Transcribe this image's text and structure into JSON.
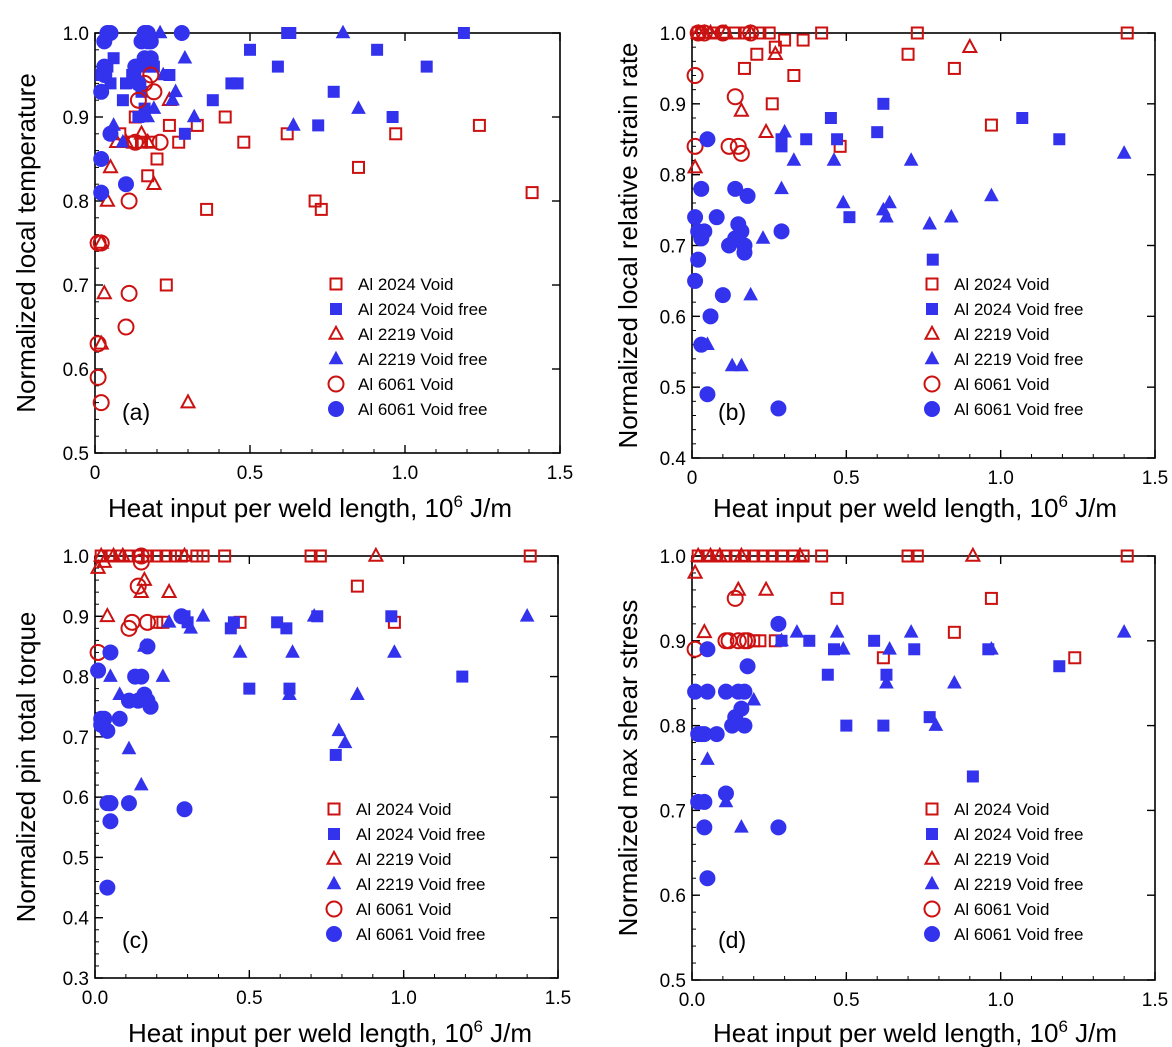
{
  "colors": {
    "void": "#cc1111",
    "void_free": "#3333ee"
  },
  "legend_entries": [
    {
      "label": "Al 2024 Void",
      "marker": "square",
      "filled": false
    },
    {
      "label": "Al 2024 Void free",
      "marker": "square",
      "filled": true
    },
    {
      "label": "Al 2219 Void",
      "marker": "triangle",
      "filled": false
    },
    {
      "label": "Al 2219 Void free",
      "marker": "triangle",
      "filled": true
    },
    {
      "label": "Al 6061 Void",
      "marker": "circle",
      "filled": false
    },
    {
      "label": "Al 6061 Void free",
      "marker": "circle",
      "filled": true
    }
  ],
  "chart_data": [
    {
      "type": "scatter",
      "panel_label": "(a)",
      "xlabel": "Heat input per weld length, 10",
      "xlabel_sup": "6",
      "xlabel_unit": " J/m",
      "ylabel": "Normalized local temperature",
      "xlim": [
        0,
        1.5
      ],
      "ylim": [
        0.5,
        1.0
      ],
      "xticks": [
        "0",
        "0.5",
        "1.0",
        "1.5"
      ],
      "xtick_values": [
        0,
        0.5,
        1.0,
        1.5
      ],
      "yticks": [
        "0.5",
        "0.6",
        "0.7",
        "0.8",
        "0.9",
        "1.0"
      ],
      "ytick_values": [
        0.5,
        0.6,
        0.7,
        0.8,
        0.9,
        1.0
      ],
      "series": [
        {
          "x": [
            0.12,
            0.15,
            0.18,
            0.2,
            0.24,
            0.27,
            0.33,
            0.36,
            0.42,
            0.48,
            0.62,
            0.71,
            0.73,
            0.85,
            0.97,
            1.24,
            1.41,
            0.23,
            0.17,
            0.13,
            0.08
          ],
          "y": [
            0.87,
            0.87,
            0.87,
            0.85,
            0.89,
            0.87,
            0.89,
            0.79,
            0.9,
            0.87,
            0.88,
            0.8,
            0.79,
            0.84,
            0.88,
            0.89,
            0.81,
            0.7,
            0.83,
            0.9,
            0.88
          ]
        },
        {
          "x": [
            0.05,
            0.12,
            0.14,
            0.15,
            0.16,
            0.19,
            0.24,
            0.29,
            0.38,
            0.44,
            0.46,
            0.5,
            0.59,
            0.62,
            0.63,
            0.72,
            0.77,
            0.91,
            0.96,
            1.07,
            1.19,
            0.02,
            0.03,
            0.04,
            0.05,
            0.06,
            0.09,
            0.1,
            0.13,
            0.16,
            0.18
          ],
          "y": [
            0.88,
            0.95,
            0.9,
            0.93,
            0.96,
            0.96,
            0.95,
            0.88,
            0.92,
            0.94,
            0.94,
            0.98,
            0.96,
            1.0,
            1.0,
            0.89,
            0.93,
            0.98,
            0.9,
            0.96,
            1.0,
            0.95,
            0.95,
            0.96,
            0.94,
            0.97,
            0.92,
            0.94,
            0.95,
            0.91,
            0.96
          ]
        },
        {
          "x": [
            0.02,
            0.03,
            0.04,
            0.05,
            0.07,
            0.1,
            0.15,
            0.17,
            0.19,
            0.24,
            0.3,
            0.02
          ],
          "y": [
            0.75,
            0.69,
            0.8,
            0.84,
            0.87,
            0.87,
            0.88,
            0.87,
            0.82,
            0.92,
            0.56,
            0.63
          ]
        },
        {
          "x": [
            0.06,
            0.09,
            0.13,
            0.15,
            0.19,
            0.21,
            0.25,
            0.29,
            0.32,
            0.64,
            0.8,
            0.85,
            0.22,
            0.17,
            0.26
          ],
          "y": [
            0.89,
            0.87,
            0.96,
            0.9,
            0.91,
            1.0,
            0.92,
            0.97,
            0.9,
            0.89,
            1.0,
            0.91,
            0.95,
            0.9,
            0.93
          ]
        },
        {
          "x": [
            0.01,
            0.01,
            0.01,
            0.02,
            0.02,
            0.1,
            0.11,
            0.11,
            0.13,
            0.14,
            0.16,
            0.18,
            0.19,
            0.21
          ],
          "y": [
            0.75,
            0.63,
            0.59,
            0.56,
            0.75,
            0.65,
            0.8,
            0.69,
            0.87,
            0.92,
            0.94,
            0.95,
            0.93,
            0.87
          ]
        },
        {
          "x": [
            0.02,
            0.02,
            0.02,
            0.03,
            0.03,
            0.03,
            0.04,
            0.05,
            0.05,
            0.1,
            0.13,
            0.14,
            0.15,
            0.16,
            0.16,
            0.17,
            0.17,
            0.18,
            0.18,
            0.28
          ],
          "y": [
            0.81,
            0.85,
            0.93,
            0.95,
            0.96,
            0.99,
            1.0,
            0.88,
            1.0,
            0.82,
            0.96,
            0.94,
            0.99,
            0.97,
            1.0,
            1.0,
            0.99,
            0.99,
            0.97,
            1.0
          ]
        }
      ]
    },
    {
      "type": "scatter",
      "panel_label": "(b)",
      "xlabel": "Heat input per weld length, 10",
      "xlabel_sup": "6",
      "xlabel_unit": " J/m",
      "ylabel": "Normalized local relative strain rate",
      "xlim": [
        0,
        1.5
      ],
      "ylim": [
        0.4,
        1.0
      ],
      "xticks": [
        "0",
        "0.5",
        "1.0",
        "1.5"
      ],
      "xtick_values": [
        0,
        0.5,
        1.0,
        1.5
      ],
      "yticks": [
        "0.4",
        "0.5",
        "0.6",
        "0.7",
        "0.8",
        "0.9",
        "1.0"
      ],
      "ytick_values": [
        0.4,
        0.5,
        0.6,
        0.7,
        0.8,
        0.9,
        1.0
      ],
      "series": [
        {
          "x": [
            0.02,
            0.07,
            0.1,
            0.14,
            0.17,
            0.21,
            0.22,
            0.25,
            0.27,
            0.3,
            0.33,
            0.36,
            0.42,
            0.48,
            0.7,
            0.73,
            0.85,
            0.97,
            1.41,
            0.17,
            0.26
          ],
          "y": [
            1.0,
            1.0,
            1.0,
            1.0,
            1.0,
            0.97,
            1.0,
            1.0,
            0.98,
            0.99,
            0.94,
            0.99,
            1.0,
            0.84,
            0.97,
            1.0,
            0.95,
            0.87,
            1.0,
            0.95,
            0.9
          ]
        },
        {
          "x": [
            0.29,
            0.37,
            0.45,
            0.47,
            0.51,
            0.6,
            0.62,
            0.78,
            1.07,
            1.19,
            0.29
          ],
          "y": [
            0.84,
            0.85,
            0.88,
            0.85,
            0.74,
            0.86,
            0.9,
            0.68,
            0.88,
            0.85,
            0.85
          ]
        },
        {
          "x": [
            0.01,
            0.02,
            0.04,
            0.06,
            0.11,
            0.16,
            0.19,
            0.24,
            0.27,
            0.9
          ],
          "y": [
            0.81,
            1.0,
            1.0,
            1.0,
            1.0,
            0.89,
            1.0,
            0.86,
            0.97,
            0.98
          ]
        },
        {
          "x": [
            0.05,
            0.13,
            0.16,
            0.19,
            0.23,
            0.29,
            0.3,
            0.33,
            0.46,
            0.49,
            0.62,
            0.63,
            0.64,
            0.71,
            0.77,
            0.84,
            0.97,
            1.4
          ],
          "y": [
            0.56,
            0.53,
            0.53,
            0.63,
            0.71,
            0.78,
            0.86,
            0.82,
            0.82,
            0.76,
            0.75,
            0.74,
            0.76,
            0.82,
            0.73,
            0.74,
            0.77,
            0.83
          ]
        },
        {
          "x": [
            0.01,
            0.01,
            0.02,
            0.04,
            0.1,
            0.12,
            0.14,
            0.15,
            0.16,
            0.19
          ],
          "y": [
            0.94,
            0.84,
            1.0,
            1.0,
            1.0,
            0.84,
            0.91,
            0.84,
            0.83,
            1.0
          ]
        },
        {
          "x": [
            0.01,
            0.01,
            0.02,
            0.02,
            0.03,
            0.03,
            0.04,
            0.05,
            0.05,
            0.06,
            0.08,
            0.1,
            0.12,
            0.14,
            0.14,
            0.15,
            0.16,
            0.17,
            0.17,
            0.18,
            0.29,
            0.28,
            0.03
          ],
          "y": [
            0.65,
            0.74,
            0.72,
            0.68,
            0.71,
            0.78,
            0.72,
            0.85,
            0.49,
            0.6,
            0.74,
            0.63,
            0.7,
            0.78,
            0.71,
            0.73,
            0.72,
            0.7,
            0.69,
            0.77,
            0.72,
            0.47,
            0.56
          ]
        }
      ]
    },
    {
      "type": "scatter",
      "panel_label": "(c)",
      "xlabel": "Heat input per weld length, 10",
      "xlabel_sup": "6",
      "xlabel_unit": " J/m",
      "ylabel": "Normalized pin total torque",
      "xlim": [
        0,
        1.5
      ],
      "ylim": [
        0.3,
        1.0
      ],
      "xticks": [
        "0.0",
        "0.5",
        "1.0",
        "1.5"
      ],
      "xtick_values": [
        0,
        0.5,
        1.0,
        1.5
      ],
      "yticks": [
        "0.3",
        "0.4",
        "0.5",
        "0.6",
        "0.7",
        "0.8",
        "0.9",
        "1.0"
      ],
      "ytick_values": [
        0.3,
        0.4,
        0.5,
        0.6,
        0.7,
        0.8,
        0.9,
        1.0
      ],
      "series": [
        {
          "x": [
            0.02,
            0.05,
            0.08,
            0.11,
            0.14,
            0.17,
            0.2,
            0.23,
            0.26,
            0.28,
            0.33,
            0.35,
            0.42,
            0.47,
            0.7,
            0.73,
            0.85,
            0.97,
            1.41,
            0.2,
            0.22
          ],
          "y": [
            1.0,
            1.0,
            1.0,
            1.0,
            1.0,
            1.0,
            1.0,
            1.0,
            1.0,
            1.0,
            1.0,
            1.0,
            1.0,
            0.89,
            1.0,
            1.0,
            0.95,
            0.89,
            1.0,
            0.89,
            0.89
          ]
        },
        {
          "x": [
            0.3,
            0.44,
            0.45,
            0.5,
            0.59,
            0.62,
            0.63,
            0.72,
            0.78,
            0.96,
            1.19,
            0.29
          ],
          "y": [
            0.89,
            0.88,
            0.89,
            0.78,
            0.89,
            0.88,
            0.78,
            0.9,
            0.67,
            0.9,
            0.8,
            0.9
          ]
        },
        {
          "x": [
            0.01,
            0.02,
            0.04,
            0.06,
            0.09,
            0.15,
            0.16,
            0.24,
            0.29,
            0.91,
            0.03
          ],
          "y": [
            0.98,
            1.0,
            0.9,
            1.0,
            1.0,
            0.94,
            0.96,
            0.94,
            1.0,
            1.0,
            0.99
          ]
        },
        {
          "x": [
            0.05,
            0.08,
            0.11,
            0.15,
            0.16,
            0.22,
            0.24,
            0.31,
            0.35,
            0.47,
            0.63,
            0.64,
            0.71,
            0.79,
            0.81,
            0.85,
            0.97,
            1.4
          ],
          "y": [
            0.8,
            0.77,
            0.68,
            0.62,
            0.85,
            0.8,
            0.89,
            0.88,
            0.9,
            0.84,
            0.77,
            0.84,
            0.9,
            0.71,
            0.69,
            0.77,
            0.84,
            0.9
          ]
        },
        {
          "x": [
            0.01,
            0.11,
            0.12,
            0.14,
            0.15,
            0.17,
            0.15
          ],
          "y": [
            0.84,
            0.88,
            0.89,
            0.95,
            0.99,
            0.89,
            1.0
          ]
        },
        {
          "x": [
            0.01,
            0.02,
            0.02,
            0.03,
            0.04,
            0.04,
            0.05,
            0.05,
            0.05,
            0.08,
            0.11,
            0.11,
            0.13,
            0.14,
            0.15,
            0.16,
            0.17,
            0.17,
            0.18,
            0.28,
            0.29,
            0.04,
            0.05
          ],
          "y": [
            0.81,
            0.73,
            0.72,
            0.73,
            0.71,
            0.59,
            0.59,
            0.56,
            0.84,
            0.73,
            0.76,
            0.59,
            0.8,
            0.76,
            0.8,
            0.77,
            0.76,
            0.85,
            0.75,
            0.9,
            0.58,
            0.45,
            0.59
          ]
        }
      ]
    },
    {
      "type": "scatter",
      "panel_label": "(d)",
      "xlabel": "Heat input per weld length, 10",
      "xlabel_sup": "6",
      "xlabel_unit": " J/m",
      "ylabel": "Normalized max shear stress",
      "xlim": [
        0,
        1.5
      ],
      "ylim": [
        0.5,
        1.0
      ],
      "xticks": [
        "0.0",
        "0.5",
        "1.0",
        "1.5"
      ],
      "xtick_values": [
        0,
        0.5,
        1.0,
        1.5
      ],
      "yticks": [
        "0.5",
        "0.6",
        "0.7",
        "0.8",
        "0.9",
        "1.0"
      ],
      "ytick_values": [
        0.5,
        0.6,
        0.7,
        0.8,
        0.9,
        1.0
      ],
      "series": [
        {
          "x": [
            0.02,
            0.05,
            0.08,
            0.11,
            0.14,
            0.17,
            0.2,
            0.23,
            0.26,
            0.29,
            0.33,
            0.36,
            0.42,
            0.47,
            0.62,
            0.7,
            0.73,
            0.85,
            0.97,
            1.24,
            1.41,
            0.2,
            0.22,
            0.27
          ],
          "y": [
            1.0,
            1.0,
            1.0,
            1.0,
            1.0,
            1.0,
            1.0,
            1.0,
            1.0,
            1.0,
            1.0,
            1.0,
            1.0,
            0.95,
            0.88,
            1.0,
            1.0,
            0.91,
            0.95,
            0.88,
            1.0,
            0.9,
            0.9,
            0.9
          ]
        },
        {
          "x": [
            0.29,
            0.44,
            0.5,
            0.59,
            0.62,
            0.63,
            0.72,
            0.77,
            0.91,
            0.96,
            1.19,
            0.38,
            0.46
          ],
          "y": [
            0.9,
            0.86,
            0.8,
            0.9,
            0.8,
            0.86,
            0.89,
            0.81,
            0.74,
            0.89,
            0.87,
            0.9,
            0.89
          ]
        },
        {
          "x": [
            0.01,
            0.02,
            0.04,
            0.06,
            0.09,
            0.15,
            0.16,
            0.24,
            0.35,
            0.91
          ],
          "y": [
            0.98,
            1.0,
            0.91,
            1.0,
            1.0,
            0.96,
            1.0,
            0.96,
            1.0,
            1.0
          ]
        },
        {
          "x": [
            0.05,
            0.11,
            0.16,
            0.2,
            0.29,
            0.34,
            0.47,
            0.63,
            0.64,
            0.71,
            0.79,
            0.85,
            0.97,
            1.4,
            0.49
          ],
          "y": [
            0.76,
            0.71,
            0.68,
            0.83,
            0.9,
            0.91,
            0.91,
            0.85,
            0.89,
            0.91,
            0.8,
            0.85,
            0.89,
            0.91,
            0.89
          ]
        },
        {
          "x": [
            0.01,
            0.11,
            0.12,
            0.14,
            0.15,
            0.17,
            0.18
          ],
          "y": [
            0.89,
            0.9,
            0.9,
            0.95,
            0.9,
            0.9,
            0.9
          ]
        },
        {
          "x": [
            0.01,
            0.02,
            0.02,
            0.03,
            0.04,
            0.04,
            0.05,
            0.05,
            0.05,
            0.08,
            0.11,
            0.11,
            0.13,
            0.14,
            0.15,
            0.16,
            0.17,
            0.17,
            0.18,
            0.28,
            0.28,
            0.04
          ],
          "y": [
            0.84,
            0.79,
            0.71,
            0.79,
            0.71,
            0.68,
            0.89,
            0.62,
            0.84,
            0.79,
            0.84,
            0.72,
            0.8,
            0.81,
            0.84,
            0.82,
            0.8,
            0.84,
            0.87,
            0.92,
            0.68,
            0.79
          ]
        }
      ]
    }
  ]
}
